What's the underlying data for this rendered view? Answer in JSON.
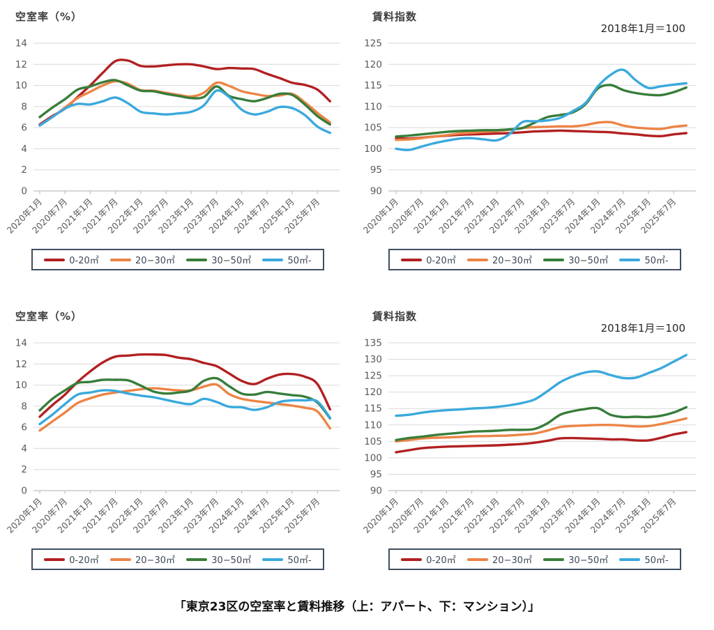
{
  "page": {
    "caption": "「東京23区の空室率と賃料推移（上：アパート、下：マンション）」"
  },
  "palette": {
    "red": "#b22022",
    "orange": "#ec8445",
    "green": "#377d3a",
    "blue": "#3aa9dc",
    "gridline": "#d9d9d9",
    "axis": "#bfbfbf",
    "tick_label": "#595959",
    "title_text": "#3f3f3f",
    "legend_border": "#3e4e60",
    "legend_text": "#3d4856"
  },
  "legend": {
    "items": [
      {
        "label": "0-20㎡",
        "color": "#b22022"
      },
      {
        "label": "20−30㎡",
        "color": "#ec8445"
      },
      {
        "label": "30−50㎡",
        "color": "#377d3a"
      },
      {
        "label": "50㎡-",
        "color": "#3aa9dc"
      }
    ]
  },
  "x_axis": {
    "tick_labels": [
      "2020年1月",
      "2020年7月",
      "2021年1月",
      "2021年7月",
      "2022年1月",
      "2022年7月",
      "2023年1月",
      "2023年7月",
      "2024年1月",
      "2024年7月",
      "2025年1月",
      "2025年7月"
    ],
    "sample_interval_months": 3,
    "tick_interval_months": 6
  },
  "chart_data": [
    {
      "id": "apartment-vacancy",
      "type": "line",
      "side": "left",
      "title": "空室率（%）",
      "annotation": "",
      "ylabel": "空室率（%）",
      "ylim": [
        0,
        14
      ],
      "ytick_step": 2,
      "series": [
        {
          "name": "0-20㎡",
          "color": "#b22022",
          "values": [
            6.3,
            7.1,
            7.8,
            8.9,
            10.0,
            11.2,
            12.3,
            12.35,
            11.85,
            11.8,
            11.9,
            12.0,
            12.0,
            11.8,
            11.55,
            11.65,
            11.6,
            11.55,
            11.1,
            10.7,
            10.25,
            10.05,
            9.6,
            8.5
          ]
        },
        {
          "name": "20−30㎡",
          "color": "#ec8445",
          "values": [
            6.2,
            7.0,
            7.9,
            8.8,
            9.4,
            10.0,
            10.4,
            10.15,
            9.55,
            9.5,
            9.3,
            9.1,
            8.95,
            9.3,
            10.25,
            9.95,
            9.45,
            9.2,
            9.0,
            9.05,
            9.2,
            8.4,
            7.4,
            6.5
          ]
        },
        {
          "name": "30−50㎡",
          "color": "#377d3a",
          "values": [
            7.0,
            7.9,
            8.7,
            9.6,
            9.9,
            10.3,
            10.5,
            10.0,
            9.5,
            9.45,
            9.2,
            9.0,
            8.8,
            8.9,
            9.9,
            9.0,
            8.7,
            8.5,
            8.8,
            9.2,
            9.1,
            8.2,
            7.1,
            6.3
          ]
        },
        {
          "name": "50㎡-",
          "color": "#3aa9dc",
          "values": [
            6.2,
            7.0,
            7.8,
            8.25,
            8.2,
            8.5,
            8.85,
            8.3,
            7.5,
            7.35,
            7.25,
            7.35,
            7.5,
            8.1,
            9.5,
            8.9,
            7.7,
            7.25,
            7.5,
            7.95,
            7.85,
            7.2,
            6.1,
            5.5
          ]
        }
      ]
    },
    {
      "id": "apartment-rent-index",
      "type": "line",
      "side": "right",
      "title": "賃料指数",
      "annotation": "2018年1月＝100",
      "ylabel": "賃料指数",
      "ylim": [
        90,
        125
      ],
      "ytick_step": 5,
      "series": [
        {
          "name": "0-20㎡",
          "color": "#b22022",
          "values": [
            102.5,
            102.4,
            102.6,
            102.9,
            103.1,
            103.3,
            103.4,
            103.5,
            103.6,
            103.7,
            103.9,
            104.1,
            104.2,
            104.3,
            104.2,
            104.1,
            104.0,
            103.9,
            103.6,
            103.4,
            103.1,
            103.0,
            103.4,
            103.7
          ]
        },
        {
          "name": "20−30㎡",
          "color": "#ec8445",
          "values": [
            102.1,
            102.2,
            102.5,
            102.9,
            103.2,
            103.6,
            103.8,
            104.0,
            104.2,
            104.5,
            104.9,
            105.1,
            105.2,
            105.3,
            105.3,
            105.6,
            106.2,
            106.3,
            105.5,
            105.0,
            104.8,
            104.7,
            105.2,
            105.5
          ]
        },
        {
          "name": "30−50㎡",
          "color": "#377d3a",
          "values": [
            102.9,
            103.1,
            103.4,
            103.7,
            104.0,
            104.2,
            104.3,
            104.4,
            104.4,
            104.6,
            104.9,
            106.2,
            107.5,
            108.0,
            108.6,
            110.5,
            114.3,
            115.1,
            113.9,
            113.2,
            112.8,
            112.7,
            113.4,
            114.5
          ]
        },
        {
          "name": "50㎡-",
          "color": "#3aa9dc",
          "values": [
            100.0,
            99.7,
            100.5,
            101.3,
            101.9,
            102.4,
            102.5,
            102.2,
            102.0,
            103.5,
            106.3,
            106.5,
            106.7,
            107.3,
            108.9,
            110.8,
            114.8,
            117.5,
            118.7,
            116.2,
            114.4,
            114.8,
            115.2,
            115.5
          ]
        }
      ]
    },
    {
      "id": "mansion-vacancy",
      "type": "line",
      "side": "left",
      "title": "空室率（%）",
      "annotation": "",
      "ylabel": "空室率（%）",
      "ylim": [
        0,
        14
      ],
      "ytick_step": 2,
      "series": [
        {
          "name": "0-20㎡",
          "color": "#b22022",
          "values": [
            7.0,
            8.1,
            9.1,
            10.3,
            11.3,
            12.15,
            12.7,
            12.8,
            12.9,
            12.9,
            12.85,
            12.6,
            12.45,
            12.1,
            11.8,
            11.1,
            10.4,
            10.1,
            10.6,
            11.0,
            11.05,
            10.8,
            10.1,
            7.7
          ]
        },
        {
          "name": "20−30㎡",
          "color": "#ec8445",
          "values": [
            5.7,
            6.55,
            7.4,
            8.3,
            8.75,
            9.1,
            9.3,
            9.45,
            9.6,
            9.7,
            9.6,
            9.5,
            9.5,
            9.85,
            10.05,
            9.15,
            8.7,
            8.5,
            8.35,
            8.2,
            8.05,
            7.85,
            7.5,
            5.9
          ]
        },
        {
          "name": "30−50㎡",
          "color": "#377d3a",
          "values": [
            7.6,
            8.7,
            9.5,
            10.2,
            10.3,
            10.5,
            10.5,
            10.45,
            9.95,
            9.4,
            9.2,
            9.3,
            9.5,
            10.4,
            10.65,
            9.9,
            9.2,
            9.1,
            9.35,
            9.2,
            9.05,
            8.9,
            8.35,
            6.85
          ]
        },
        {
          "name": "50㎡-",
          "color": "#3aa9dc",
          "values": [
            6.3,
            7.2,
            8.2,
            9.1,
            9.3,
            9.5,
            9.45,
            9.2,
            9.0,
            8.85,
            8.6,
            8.35,
            8.2,
            8.7,
            8.4,
            7.95,
            7.9,
            7.65,
            7.9,
            8.4,
            8.55,
            8.55,
            8.45,
            6.9
          ]
        }
      ]
    },
    {
      "id": "mansion-rent-index",
      "type": "line",
      "side": "right",
      "title": "賃料指数",
      "annotation": "2018年1月＝100",
      "ylabel": "賃料指数",
      "ylim": [
        90,
        135
      ],
      "ytick_step": 5,
      "series": [
        {
          "name": "0-20㎡",
          "color": "#b22022",
          "values": [
            101.7,
            102.3,
            102.9,
            103.2,
            103.4,
            103.5,
            103.6,
            103.7,
            103.8,
            104.0,
            104.2,
            104.6,
            105.2,
            105.9,
            106.0,
            105.9,
            105.8,
            105.6,
            105.6,
            105.3,
            105.3,
            106.1,
            107.1,
            107.8
          ]
        },
        {
          "name": "20−30㎡",
          "color": "#ec8445",
          "values": [
            105.0,
            105.4,
            105.85,
            106.1,
            106.2,
            106.35,
            106.55,
            106.6,
            106.7,
            106.8,
            107.05,
            107.4,
            108.3,
            109.35,
            109.7,
            109.85,
            110.0,
            110.0,
            109.8,
            109.55,
            109.65,
            110.3,
            111.1,
            112.0
          ]
        },
        {
          "name": "30−50㎡",
          "color": "#377d3a",
          "values": [
            105.4,
            106.0,
            106.4,
            106.9,
            107.25,
            107.6,
            107.95,
            108.1,
            108.25,
            108.5,
            108.5,
            108.8,
            110.5,
            113.1,
            114.2,
            114.85,
            115.1,
            113.1,
            112.4,
            112.5,
            112.4,
            112.8,
            113.8,
            115.4
          ]
        },
        {
          "name": "50㎡-",
          "color": "#3aa9dc",
          "values": [
            112.8,
            113.1,
            113.7,
            114.2,
            114.5,
            114.7,
            115.0,
            115.2,
            115.5,
            116.0,
            116.7,
            117.8,
            120.3,
            123.0,
            124.8,
            126.0,
            126.3,
            125.2,
            124.3,
            124.4,
            125.8,
            127.3,
            129.3,
            131.3
          ]
        }
      ]
    }
  ]
}
